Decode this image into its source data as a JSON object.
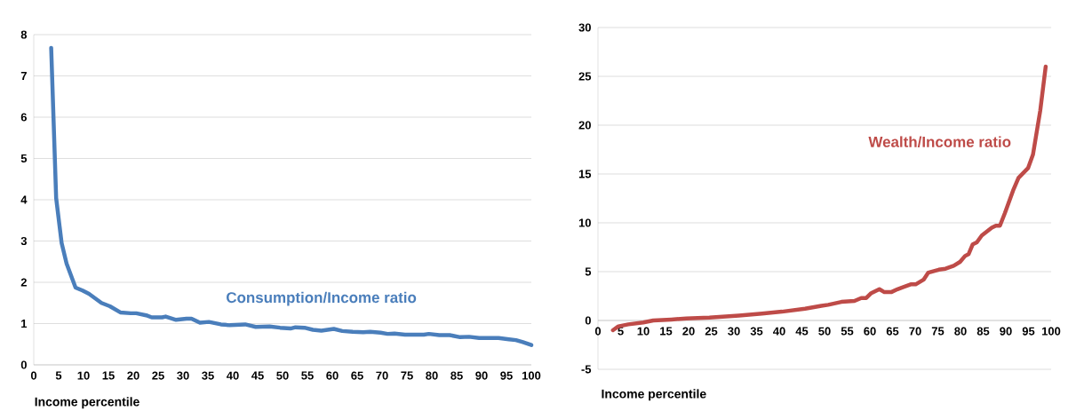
{
  "chart_data": [
    {
      "type": "line",
      "xlabel": "Income percentile",
      "xlim": [
        0,
        100
      ],
      "xticks": [
        0,
        5,
        10,
        15,
        20,
        25,
        30,
        35,
        40,
        45,
        50,
        55,
        60,
        65,
        70,
        75,
        80,
        85,
        90,
        95,
        100
      ],
      "ylim": [
        0,
        8
      ],
      "yticks": [
        0,
        1,
        2,
        3,
        4,
        5,
        6,
        7,
        8
      ],
      "grid": "y",
      "series": [
        {
          "name": "Consumption/Income ratio",
          "color": "#4a7ebb",
          "x": [
            3.5,
            4.5,
            5.6,
            6.6,
            8.4,
            9.8,
            11.1,
            13.6,
            15.3,
            17.4,
            19.5,
            20.6,
            22.6,
            23.7,
            25.8,
            26.5,
            28.6,
            30.7,
            31.7,
            33.4,
            35.2,
            37.6,
            39.4,
            42.5,
            44.6,
            47.4,
            49.5,
            51.6,
            52.6,
            54.4,
            56.1,
            57.8,
            60.3,
            62,
            64.1,
            66.2,
            67.6,
            69.7,
            71.1,
            72.5,
            74.6,
            78.4,
            79.4,
            81.5,
            83.6,
            85.7,
            87.5,
            89.5,
            93.4,
            95.5,
            96.9,
            98.3,
            100
          ],
          "values": [
            7.68,
            4.04,
            2.95,
            2.45,
            1.87,
            1.8,
            1.72,
            1.5,
            1.42,
            1.27,
            1.25,
            1.25,
            1.2,
            1.15,
            1.15,
            1.17,
            1.09,
            1.12,
            1.12,
            1.02,
            1.04,
            0.98,
            0.96,
            0.98,
            0.92,
            0.93,
            0.9,
            0.88,
            0.91,
            0.9,
            0.85,
            0.83,
            0.87,
            0.82,
            0.8,
            0.79,
            0.8,
            0.78,
            0.75,
            0.76,
            0.73,
            0.73,
            0.75,
            0.72,
            0.72,
            0.67,
            0.68,
            0.65,
            0.65,
            0.62,
            0.6,
            0.55,
            0.48
          ]
        }
      ]
    },
    {
      "type": "line",
      "xlabel": "Income percentile",
      "xlim": [
        0,
        100
      ],
      "xticks": [
        0,
        5,
        10,
        15,
        20,
        25,
        30,
        35,
        40,
        45,
        50,
        55,
        60,
        65,
        70,
        75,
        80,
        85,
        90,
        95,
        100
      ],
      "ylim": [
        -5,
        30
      ],
      "yticks": [
        -5,
        0,
        5,
        10,
        15,
        20,
        25,
        30
      ],
      "grid": "y",
      "series": [
        {
          "name": "Wealth/Income ratio",
          "color": "#be4b48",
          "x": [
            3.3,
            4.5,
            6.7,
            10,
            12.2,
            16.2,
            19.5,
            24.6,
            31.1,
            36.2,
            40.6,
            45.7,
            49.3,
            50.8,
            53.7,
            56.6,
            58.1,
            59.2,
            60.3,
            62.1,
            63.2,
            64.7,
            66.1,
            69,
            70.1,
            71.9,
            72.9,
            75.2,
            76.7,
            78.5,
            79.9,
            81,
            81.8,
            82.7,
            83.6,
            84.7,
            86.9,
            87.8,
            88.7,
            89.8,
            91.6,
            92.8,
            94.9,
            96,
            97.6,
            98.8
          ],
          "values": [
            -1.0,
            -0.6,
            -0.4,
            -0.2,
            0,
            0.1,
            0.2,
            0.3,
            0.5,
            0.7,
            0.9,
            1.2,
            1.5,
            1.6,
            1.9,
            2,
            2.3,
            2.3,
            2.8,
            3.2,
            2.9,
            2.9,
            3.2,
            3.7,
            3.7,
            4.2,
            4.9,
            5.2,
            5.3,
            5.6,
            6,
            6.6,
            6.8,
            7.8,
            8,
            8.7,
            9.5,
            9.7,
            9.7,
            11,
            13.3,
            14.6,
            15.6,
            17,
            21.5,
            26
          ]
        }
      ]
    }
  ]
}
